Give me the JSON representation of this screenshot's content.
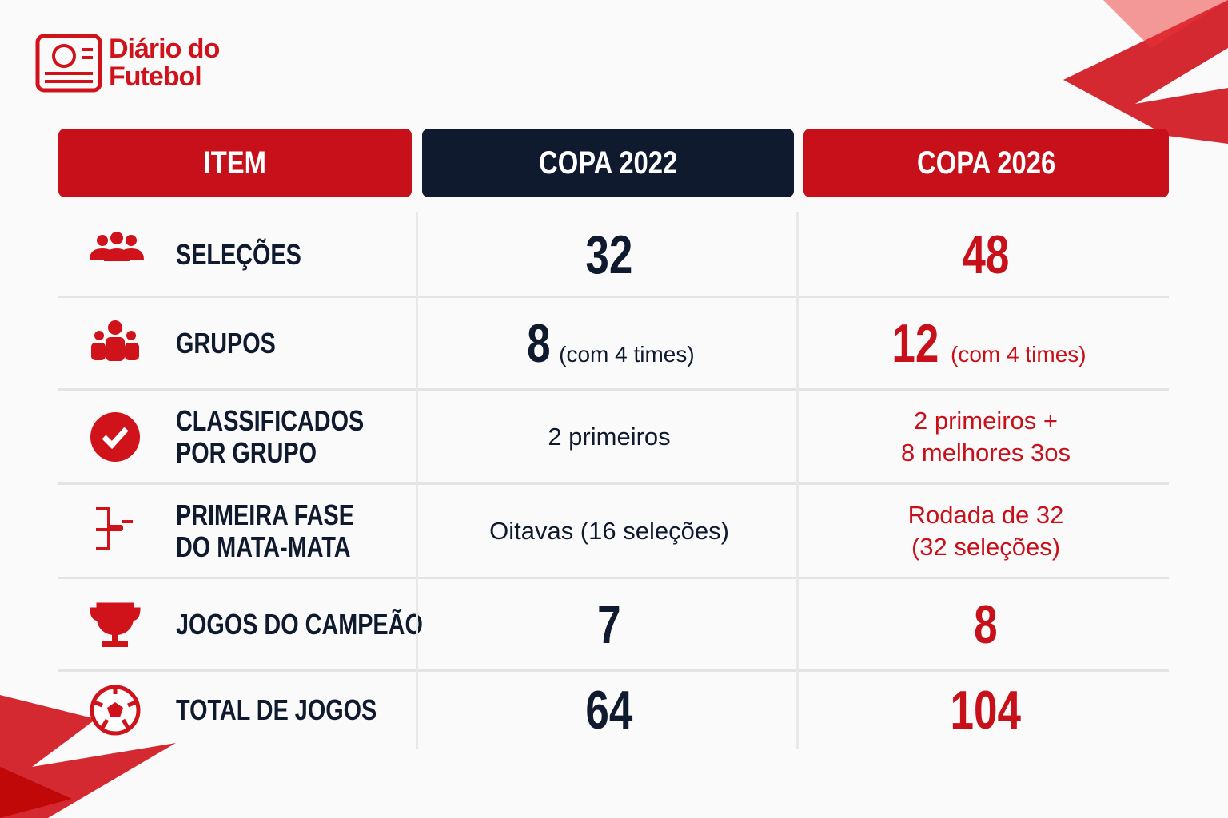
{
  "brand": {
    "line1": "Diário do",
    "line2": "Futebol"
  },
  "table": {
    "headers": [
      "ITEM",
      "COPA 2022",
      "COPA 2026"
    ],
    "rows": [
      {
        "item": [
          "SELEÇÕES"
        ],
        "copa_2022": {
          "main": "32"
        },
        "copa_2026": {
          "main": "48"
        }
      },
      {
        "item": [
          "GRUPOS"
        ],
        "copa_2022": {
          "main": "8",
          "note": "(com 4 times)"
        },
        "copa_2026": {
          "main": "12",
          "note": "(com 4 times)"
        }
      },
      {
        "item": [
          "CLASSIFICADOS",
          "POR GRUPO"
        ],
        "copa_2022": {
          "lines": [
            "2 primeiros"
          ]
        },
        "copa_2026": {
          "lines": [
            "2 primeiros +",
            "8 melhores 3os"
          ]
        }
      },
      {
        "item": [
          "PRIMEIRA FASE",
          "DO MATA-MATA"
        ],
        "copa_2022": {
          "lines": [
            "Oitavas (16 seleções)"
          ]
        },
        "copa_2026": {
          "lines": [
            "Rodada de 32",
            "(32 seleções)"
          ]
        }
      },
      {
        "item": [
          "JOGOS DO CAMPEÃO"
        ],
        "copa_2022": {
          "main": "7"
        },
        "copa_2026": {
          "main": "8"
        }
      },
      {
        "item": [
          "TOTAL DE JOGOS"
        ],
        "copa_2022": {
          "main": "64"
        },
        "copa_2026": {
          "main": "104"
        }
      }
    ]
  }
}
